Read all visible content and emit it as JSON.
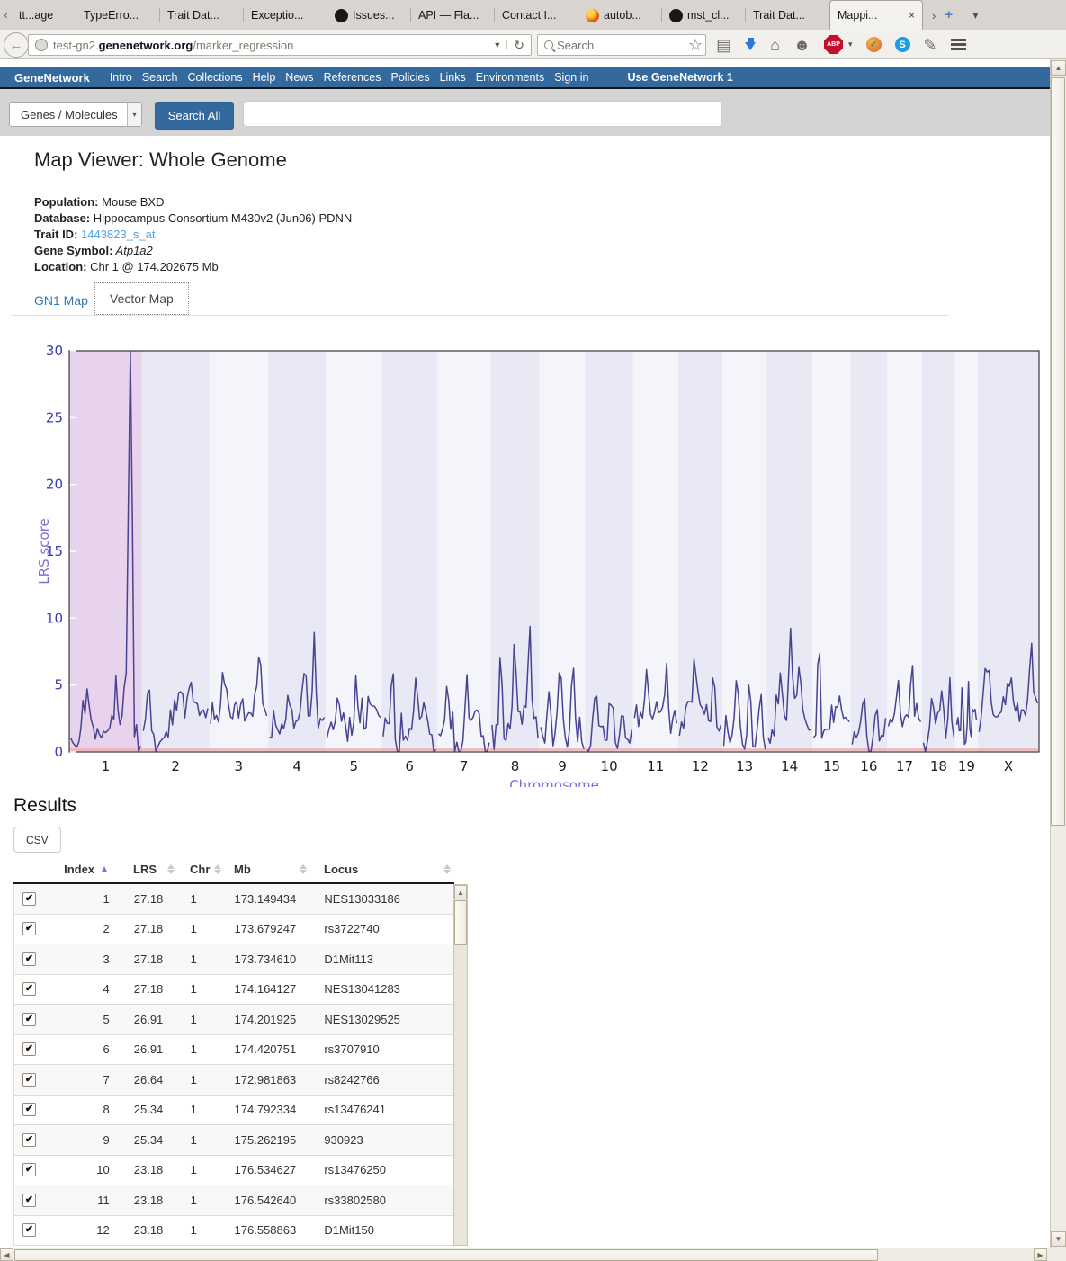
{
  "browser": {
    "tab_scroll_left": "‹",
    "tabs": [
      {
        "label": "tt...age",
        "icon": null,
        "active": false
      },
      {
        "label": "TypeErro...",
        "icon": null,
        "active": false
      },
      {
        "label": "Trait Dat...",
        "icon": null,
        "active": false
      },
      {
        "label": "Exceptio...",
        "icon": null,
        "active": false
      },
      {
        "label": "Issues...",
        "icon": "github",
        "active": false
      },
      {
        "label": "API — Fla...",
        "icon": null,
        "active": false
      },
      {
        "label": "Contact I...",
        "icon": null,
        "active": false
      },
      {
        "label": "autob...",
        "icon": "firefox",
        "active": false
      },
      {
        "label": "mst_cl...",
        "icon": "github",
        "active": false
      },
      {
        "label": "Trait Dat...",
        "icon": null,
        "active": false
      },
      {
        "label": "Mappi...",
        "icon": null,
        "active": true
      }
    ],
    "tab_overflow": "›",
    "new_tab": "+",
    "tab_list_caret": "▾",
    "close_glyph": "×",
    "url": {
      "prefix": "test-gn2.",
      "domain": "genenetwork.org",
      "path": "/marker_regression"
    },
    "search_placeholder": "Search",
    "toolbar_icons": [
      "bookmark-star-icon",
      "reading-list-icon",
      "download-arrow-icon",
      "home-icon",
      "chat-icon",
      "adblock-icon",
      "adblock-caret-icon",
      "tab-groups-icon",
      "skype-icon",
      "compose-icon",
      "menu-icon"
    ]
  },
  "site_nav": {
    "brand": "GeneNetwork",
    "links": [
      "Intro",
      "Search",
      "Collections",
      "Help",
      "News",
      "References",
      "Policies",
      "Links",
      "Environments",
      "Sign in"
    ],
    "right_link": "Use GeneNetwork 1"
  },
  "search_bar": {
    "category": "Genes / Molecules",
    "button": "Search All",
    "query_value": ""
  },
  "page": {
    "title": "Map Viewer: Whole Genome",
    "info": [
      {
        "label": "Population:",
        "value": "Mouse BXD",
        "style": "plain"
      },
      {
        "label": "Database:",
        "value": "Hippocampus Consortium M430v2 (Jun06) PDNN",
        "style": "plain"
      },
      {
        "label": "Trait ID:",
        "value": "1443823_s_at",
        "style": "link"
      },
      {
        "label": "Gene Symbol:",
        "value": "Atp1a2",
        "style": "italic"
      },
      {
        "label": "Location:",
        "value": "Chr 1 @ 174.202675 Mb",
        "style": "plain"
      }
    ],
    "map_tabs": {
      "gn1": "GN1 Map",
      "vector": "Vector Map"
    }
  },
  "chart_data": {
    "type": "line",
    "title": "",
    "xlabel": "Chromosome",
    "ylabel": "LRS score",
    "ylim": [
      0,
      30
    ],
    "yticks": [
      0,
      5,
      10,
      15,
      20,
      25,
      30
    ],
    "grid": false,
    "legend": "none",
    "line_color": "#4a4190",
    "band_chr1_color": "#e7d3ec",
    "band_even_color": "#e9e9f5",
    "band_odd_color": "#f4f4fb",
    "baseline_color": "#f0b3b6",
    "ytick_color": "#3b3bb0",
    "xtick_color": "#1c1c1c",
    "axis_title_color": "#7a70d8",
    "note": "LRS traces per chromosome; x span proportional to Mb size; peaks = [position_fraction, height_LRS, width_fraction]; max peak on Chr1 clipped at 30",
    "chromosomes": [
      {
        "name": "1",
        "mb": 197,
        "peaks": [
          [
            0.22,
            3.6,
            0.06
          ],
          [
            0.62,
            2.0,
            0.05
          ],
          [
            0.8,
            6.0,
            0.045
          ],
          [
            0.855,
            46,
            0.02
          ]
        ]
      },
      {
        "name": "2",
        "mb": 182,
        "peaks": [
          [
            0.08,
            4.6,
            0.035
          ],
          [
            0.52,
            2.2,
            0.05
          ],
          [
            0.72,
            2.6,
            0.05
          ]
        ]
      },
      {
        "name": "3",
        "mb": 160,
        "peaks": [
          [
            0.22,
            3.4,
            0.05
          ],
          [
            0.5,
            2.2,
            0.05
          ],
          [
            0.86,
            4.6,
            0.04
          ]
        ]
      },
      {
        "name": "4",
        "mb": 156,
        "peaks": [
          [
            0.35,
            2.6,
            0.05
          ],
          [
            0.62,
            3.2,
            0.04
          ],
          [
            0.82,
            6.4,
            0.025
          ]
        ]
      },
      {
        "name": "5",
        "mb": 152,
        "peaks": [
          [
            0.2,
            3.2,
            0.05
          ],
          [
            0.55,
            4.8,
            0.03
          ],
          [
            0.78,
            3.6,
            0.04
          ]
        ]
      },
      {
        "name": "6",
        "mb": 150,
        "peaks": [
          [
            0.18,
            7.0,
            0.025
          ],
          [
            0.62,
            6.2,
            0.035
          ],
          [
            0.8,
            3.0,
            0.04
          ]
        ]
      },
      {
        "name": "7",
        "mb": 145,
        "peaks": [
          [
            0.18,
            4.4,
            0.04
          ],
          [
            0.55,
            5.6,
            0.03
          ],
          [
            0.78,
            3.4,
            0.04
          ]
        ]
      },
      {
        "name": "8",
        "mb": 132,
        "peaks": [
          [
            0.18,
            6.8,
            0.03
          ],
          [
            0.5,
            5.2,
            0.04
          ],
          [
            0.82,
            5.6,
            0.035
          ]
        ]
      },
      {
        "name": "9",
        "mb": 124,
        "peaks": [
          [
            0.2,
            4.8,
            0.04
          ],
          [
            0.45,
            5.4,
            0.035
          ],
          [
            0.75,
            4.4,
            0.04
          ]
        ]
      },
      {
        "name": "10",
        "mb": 130,
        "peaks": [
          [
            0.2,
            4.0,
            0.05
          ],
          [
            0.55,
            3.2,
            0.05
          ],
          [
            0.8,
            2.6,
            0.05
          ]
        ]
      },
      {
        "name": "11",
        "mb": 122,
        "peaks": [
          [
            0.3,
            3.0,
            0.05
          ],
          [
            0.75,
            4.6,
            0.04
          ]
        ]
      },
      {
        "name": "12",
        "mb": 120,
        "peaks": [
          [
            0.4,
            3.4,
            0.05
          ],
          [
            0.82,
            5.6,
            0.035
          ]
        ]
      },
      {
        "name": "13",
        "mb": 120,
        "peaks": [
          [
            0.3,
            4.2,
            0.05
          ],
          [
            0.62,
            5.4,
            0.035
          ],
          [
            0.88,
            6.0,
            0.03
          ]
        ]
      },
      {
        "name": "14",
        "mb": 124,
        "peaks": [
          [
            0.3,
            4.6,
            0.05
          ],
          [
            0.52,
            6.6,
            0.035
          ],
          [
            0.72,
            3.4,
            0.05
          ]
        ]
      },
      {
        "name": "15",
        "mb": 104,
        "peaks": [
          [
            0.14,
            9.6,
            0.03
          ],
          [
            0.55,
            1.6,
            0.06
          ]
        ]
      },
      {
        "name": "16",
        "mb": 98,
        "peaks": [
          [
            0.35,
            2.8,
            0.05
          ],
          [
            0.72,
            4.2,
            0.04
          ]
        ]
      },
      {
        "name": "17",
        "mb": 95,
        "peaks": [
          [
            0.3,
            2.6,
            0.05
          ],
          [
            0.72,
            4.6,
            0.035
          ]
        ]
      },
      {
        "name": "18",
        "mb": 90,
        "peaks": [
          [
            0.28,
            4.8,
            0.04
          ],
          [
            0.62,
            3.2,
            0.05
          ],
          [
            0.85,
            4.4,
            0.04
          ]
        ]
      },
      {
        "name": "19",
        "mb": 61,
        "peaks": [
          [
            0.3,
            4.0,
            0.05
          ],
          [
            0.6,
            4.8,
            0.04
          ]
        ]
      },
      {
        "name": "X",
        "mb": 166,
        "peaks": [
          [
            0.12,
            4.4,
            0.04
          ],
          [
            0.5,
            2.4,
            0.06
          ],
          [
            0.88,
            5.2,
            0.035
          ]
        ]
      }
    ]
  },
  "results": {
    "heading": "Results",
    "csv_button": "CSV",
    "columns": [
      "Index",
      "LRS",
      "Chr",
      "Mb",
      "Locus"
    ],
    "sort": {
      "column": "Index",
      "direction": "asc"
    },
    "check_glyph": "✔",
    "rows": [
      {
        "index": 1,
        "lrs": "27.18",
        "chr": "1",
        "mb": "173.149434",
        "locus": "NES13033186",
        "checked": true
      },
      {
        "index": 2,
        "lrs": "27.18",
        "chr": "1",
        "mb": "173.679247",
        "locus": "rs3722740",
        "checked": true
      },
      {
        "index": 3,
        "lrs": "27.18",
        "chr": "1",
        "mb": "173.734610",
        "locus": "D1Mit113",
        "checked": true
      },
      {
        "index": 4,
        "lrs": "27.18",
        "chr": "1",
        "mb": "174.164127",
        "locus": "NES13041283",
        "checked": true
      },
      {
        "index": 5,
        "lrs": "26.91",
        "chr": "1",
        "mb": "174.201925",
        "locus": "NES13029525",
        "checked": true
      },
      {
        "index": 6,
        "lrs": "26.91",
        "chr": "1",
        "mb": "174.420751",
        "locus": "rs3707910",
        "checked": true
      },
      {
        "index": 7,
        "lrs": "26.64",
        "chr": "1",
        "mb": "172.981863",
        "locus": "rs8242766",
        "checked": true
      },
      {
        "index": 8,
        "lrs": "25.34",
        "chr": "1",
        "mb": "174.792334",
        "locus": "rs13476241",
        "checked": true
      },
      {
        "index": 9,
        "lrs": "25.34",
        "chr": "1",
        "mb": "175.262195",
        "locus": "930923",
        "checked": true
      },
      {
        "index": 10,
        "lrs": "23.18",
        "chr": "1",
        "mb": "176.534627",
        "locus": "rs13476250",
        "checked": true
      },
      {
        "index": 11,
        "lrs": "23.18",
        "chr": "1",
        "mb": "176.542640",
        "locus": "rs33802580",
        "checked": true
      },
      {
        "index": 12,
        "lrs": "23.18",
        "chr": "1",
        "mb": "176.558863",
        "locus": "D1Mit150",
        "checked": true
      }
    ]
  }
}
